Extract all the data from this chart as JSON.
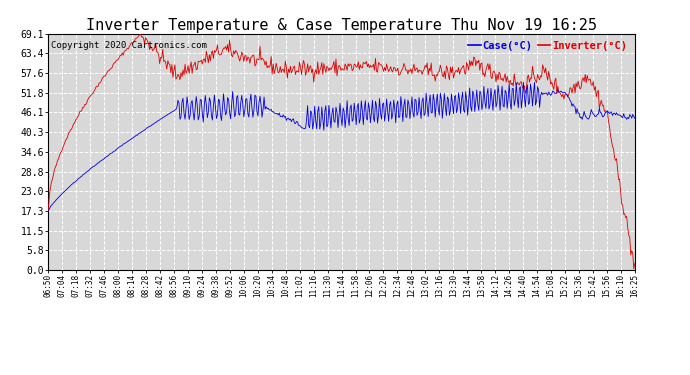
{
  "title": "Inverter Temperature & Case Temperature Thu Nov 19 16:25",
  "copyright": "Copyright 2020 Cartronics.com",
  "legend_case": "Case(°C)",
  "legend_inverter": "Inverter(°C)",
  "yticks": [
    0.0,
    5.8,
    11.5,
    17.3,
    23.0,
    28.8,
    34.6,
    40.3,
    46.1,
    51.8,
    57.6,
    63.4,
    69.1
  ],
  "ymin": 0.0,
  "ymax": 69.1,
  "background_color": "#ffffff",
  "plot_bg_color": "#d8d8d8",
  "grid_color": "#ffffff",
  "case_color": "#0000dd",
  "inverter_color": "#dd0000",
  "title_fontsize": 11,
  "copyright_fontsize": 6.5,
  "xtick_labels": [
    "06:50",
    "07:04",
    "07:18",
    "07:32",
    "07:46",
    "08:00",
    "08:14",
    "08:28",
    "08:42",
    "08:56",
    "09:10",
    "09:24",
    "09:38",
    "09:52",
    "10:06",
    "10:20",
    "10:34",
    "10:48",
    "11:02",
    "11:16",
    "11:30",
    "11:44",
    "11:58",
    "12:06",
    "12:20",
    "12:34",
    "12:48",
    "13:02",
    "13:16",
    "13:30",
    "13:44",
    "13:58",
    "14:12",
    "14:26",
    "14:40",
    "14:54",
    "15:08",
    "15:22",
    "15:36",
    "15:42",
    "15:56",
    "16:10",
    "16:25"
  ]
}
